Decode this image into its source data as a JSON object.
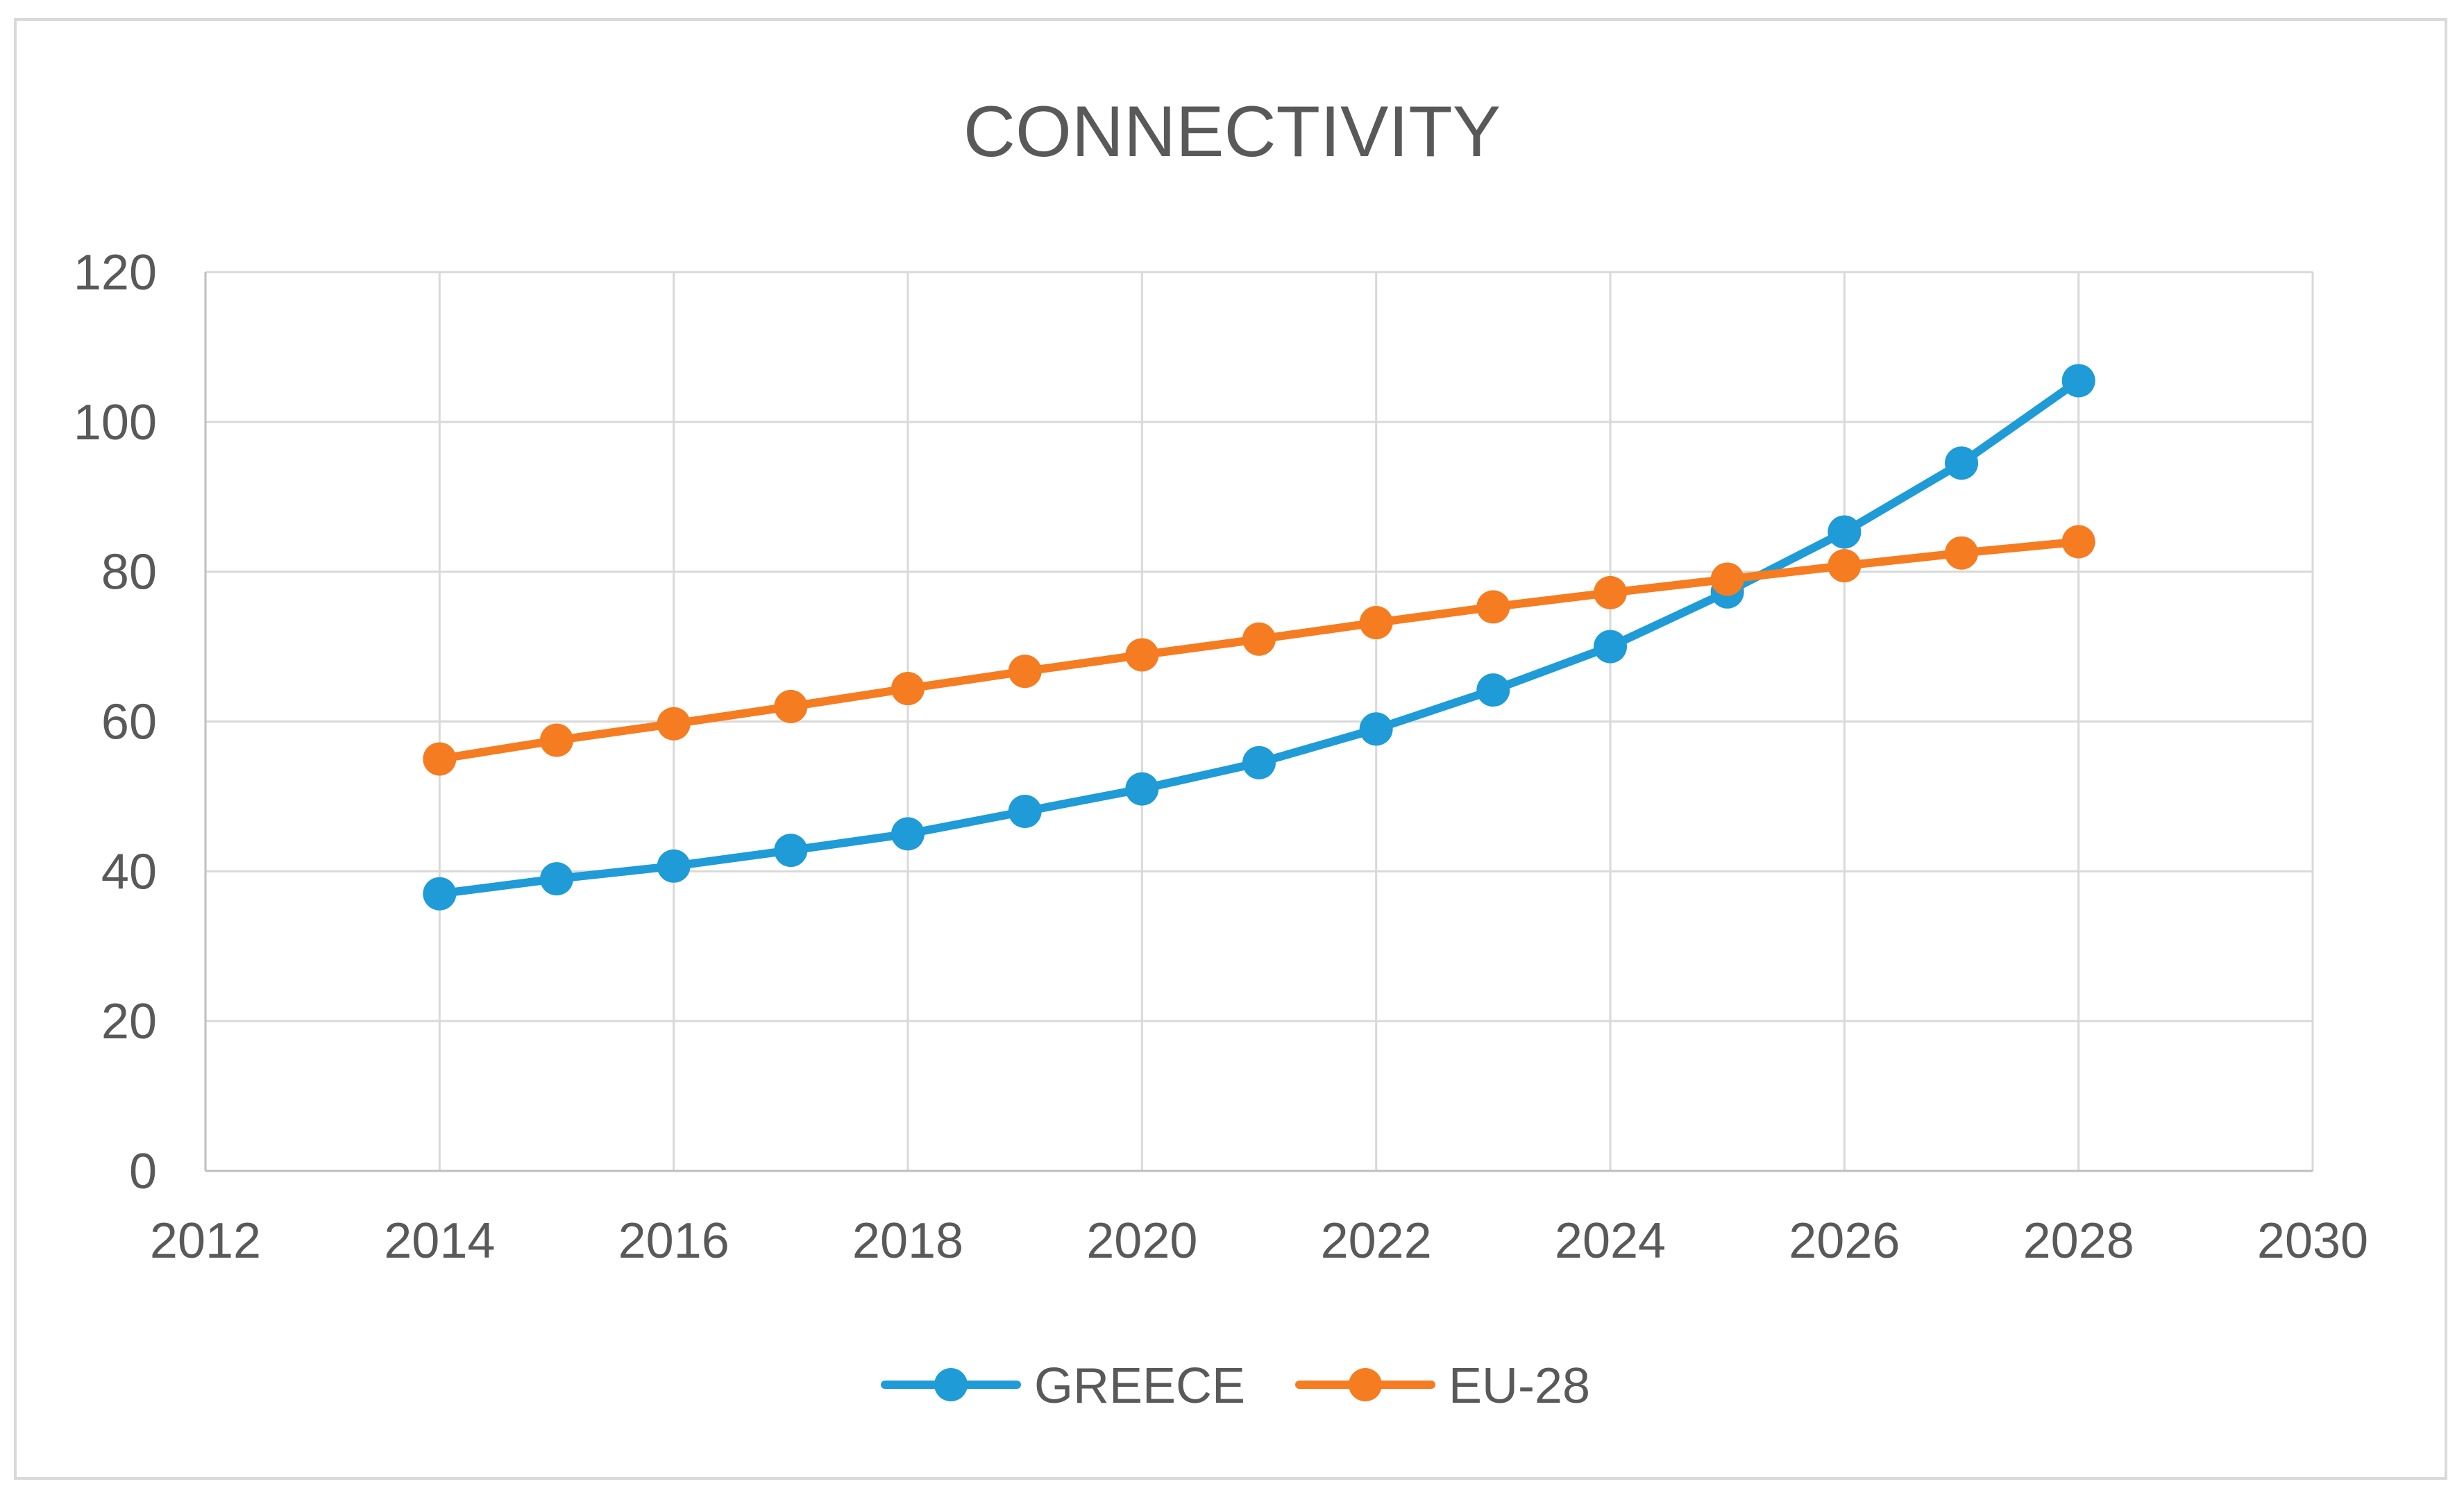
{
  "chart_data": {
    "type": "line",
    "title": "CONNECTIVITY",
    "xlabel": "",
    "ylabel": "",
    "xlim": [
      2012,
      2030
    ],
    "ylim": [
      0,
      120
    ],
    "x_ticks": [
      2012,
      2014,
      2016,
      2018,
      2020,
      2022,
      2024,
      2026,
      2028,
      2030
    ],
    "y_ticks": [
      0,
      20,
      40,
      60,
      80,
      100,
      120
    ],
    "x_tick_labels": [
      "2012",
      "2014",
      "2016",
      "2018",
      "2020",
      "2022",
      "2024",
      "2026",
      "2028",
      "2030"
    ],
    "y_tick_labels": [
      "0",
      "20",
      "40",
      "60",
      "80",
      "100",
      "120"
    ],
    "grid": true,
    "legend_position": "bottom",
    "x": [
      2014,
      2015,
      2016,
      2017,
      2018,
      2019,
      2020,
      2021,
      2022,
      2023,
      2024,
      2025,
      2026,
      2027,
      2028
    ],
    "series": [
      {
        "name": "GREECE",
        "color": "#1f9bd7",
        "values": [
          37.0,
          39.0,
          40.7,
          42.8,
          45.0,
          48.0,
          51.0,
          54.5,
          59.0,
          64.2,
          70.0,
          77.3,
          85.3,
          94.5,
          105.5
        ]
      },
      {
        "name": "EU-28",
        "color": "#f57c20",
        "values": [
          55.0,
          57.5,
          59.7,
          62.0,
          64.4,
          66.7,
          68.9,
          71.0,
          73.2,
          75.3,
          77.2,
          79.0,
          80.8,
          82.5,
          84.0
        ]
      }
    ]
  }
}
